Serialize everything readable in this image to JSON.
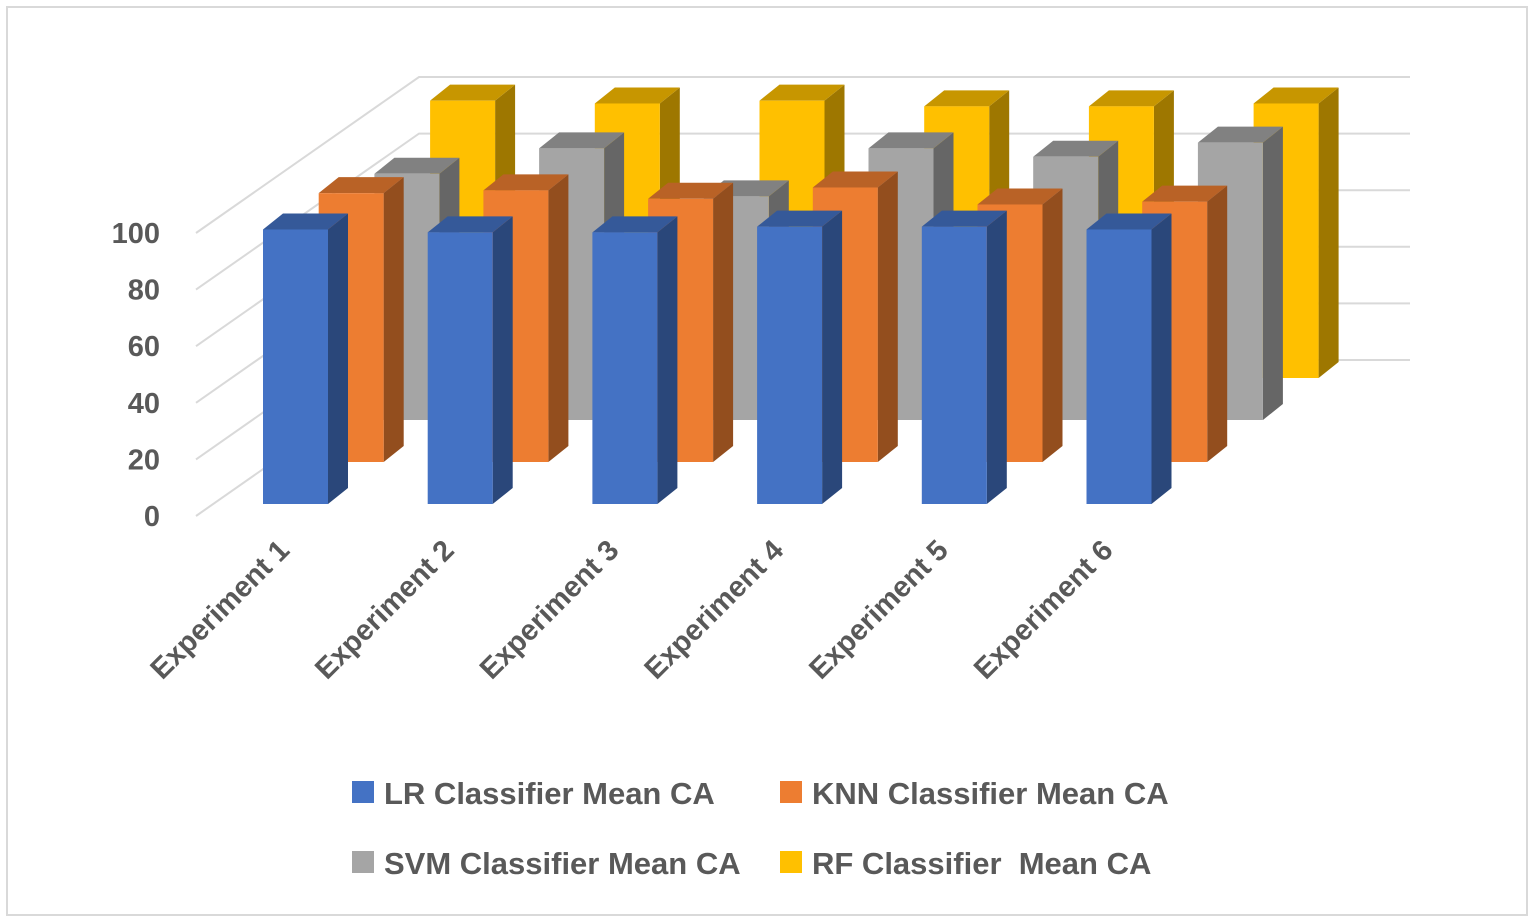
{
  "chart_data": {
    "type": "bar",
    "variant": "3d-column",
    "title": "",
    "xlabel": "",
    "ylabel": "",
    "ylim": [
      0,
      100
    ],
    "yticks": [
      0,
      20,
      40,
      60,
      80,
      100
    ],
    "categories": [
      "Experiment 1",
      "Experiment 2",
      "Experiment 3",
      "Experiment 4",
      "Experiment 5",
      "Experiment 6"
    ],
    "series": [
      {
        "name": "LR Classifier Mean CA",
        "color": "#4472C4",
        "values": [
          97,
          96,
          96,
          98,
          98,
          97
        ]
      },
      {
        "name": "KNN Classifier Mean CA",
        "color": "#ED7D31",
        "values": [
          95,
          96,
          93,
          97,
          91,
          92
        ]
      },
      {
        "name": "SVM Classifier Mean CA",
        "color": "#A5A5A5",
        "values": [
          87,
          96,
          79,
          96,
          93,
          98
        ]
      },
      {
        "name": "RF Classifier  Mean CA",
        "color": "#FFC000",
        "values": [
          98,
          97,
          98,
          96,
          96,
          97
        ]
      }
    ],
    "legend_position": "bottom",
    "grid": true
  }
}
